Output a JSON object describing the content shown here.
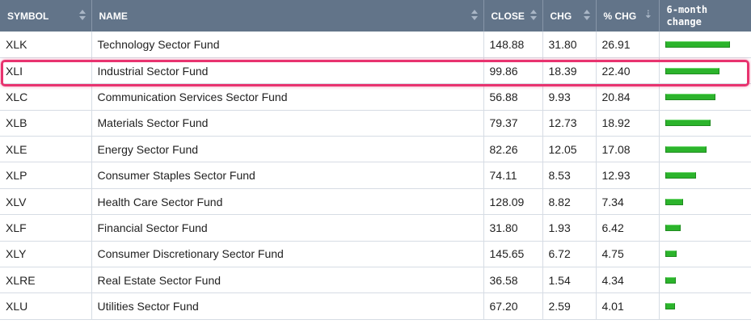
{
  "table": {
    "headers": {
      "symbol": "SYMBOL",
      "name": "NAME",
      "close": "CLOSE",
      "chg": "CHG",
      "pct_chg": "% CHG",
      "six_month_line1": "6-month",
      "six_month_line2": "change"
    },
    "sorted_column": "% CHG",
    "sort_direction": "descending",
    "highlighted_row": "XLI",
    "colors": {
      "header_bg": "#627489",
      "name_link": "#1f4e8c",
      "bar_green": "#2cb42c",
      "highlight_border": "#e8336f"
    },
    "rows": [
      {
        "symbol": "XLK",
        "name": "Technology Sector Fund",
        "close": "148.88",
        "chg": "31.80",
        "pct_chg": "26.91",
        "six_month_change_pct": 26.91
      },
      {
        "symbol": "XLI",
        "name": "Industrial Sector Fund",
        "close": "99.86",
        "chg": "18.39",
        "pct_chg": "22.40",
        "six_month_change_pct": 22.4
      },
      {
        "symbol": "XLC",
        "name": "Communication Services Sector Fund",
        "close": "56.88",
        "chg": "9.93",
        "pct_chg": "20.84",
        "six_month_change_pct": 20.84
      },
      {
        "symbol": "XLB",
        "name": "Materials Sector Fund",
        "close": "79.37",
        "chg": "12.73",
        "pct_chg": "18.92",
        "six_month_change_pct": 18.92
      },
      {
        "symbol": "XLE",
        "name": "Energy Sector Fund",
        "close": "82.26",
        "chg": "12.05",
        "pct_chg": "17.08",
        "six_month_change_pct": 17.08
      },
      {
        "symbol": "XLP",
        "name": "Consumer Staples Sector Fund",
        "close": "74.11",
        "chg": "8.53",
        "pct_chg": "12.93",
        "six_month_change_pct": 12.93
      },
      {
        "symbol": "XLV",
        "name": "Health Care Sector Fund",
        "close": "128.09",
        "chg": "8.82",
        "pct_chg": "7.34",
        "six_month_change_pct": 7.34
      },
      {
        "symbol": "XLF",
        "name": "Financial Sector Fund",
        "close": "31.80",
        "chg": "1.93",
        "pct_chg": "6.42",
        "six_month_change_pct": 6.42
      },
      {
        "symbol": "XLY",
        "name": "Consumer Discretionary Sector Fund",
        "close": "145.65",
        "chg": "6.72",
        "pct_chg": "4.75",
        "six_month_change_pct": 4.75
      },
      {
        "symbol": "XLRE",
        "name": "Real Estate Sector Fund",
        "close": "36.58",
        "chg": "1.54",
        "pct_chg": "4.34",
        "six_month_change_pct": 4.34
      },
      {
        "symbol": "XLU",
        "name": "Utilities Sector Fund",
        "close": "67.20",
        "chg": "2.59",
        "pct_chg": "4.01",
        "six_month_change_pct": 4.01
      }
    ]
  }
}
